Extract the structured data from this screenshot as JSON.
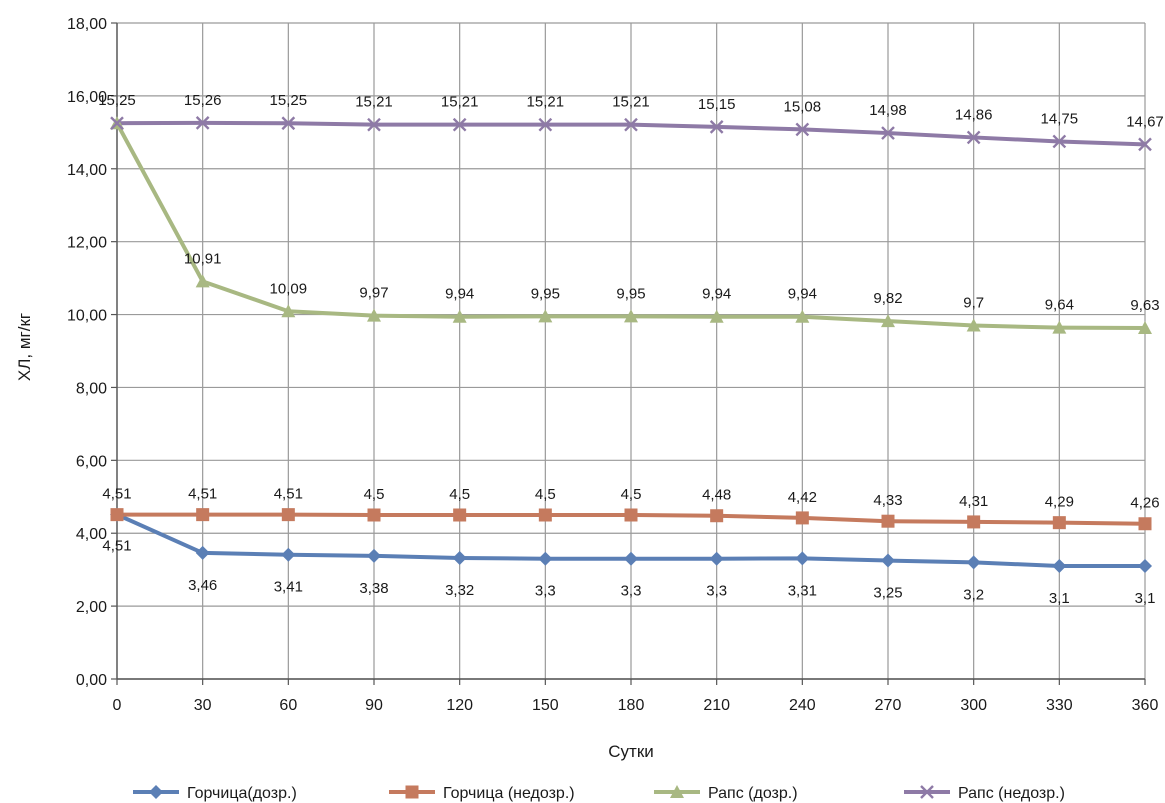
{
  "chart_data": {
    "type": "line",
    "xlabel": "Сутки",
    "ylabel": "ХЛ, мг/кг",
    "x": [
      0,
      30,
      60,
      90,
      120,
      150,
      180,
      210,
      240,
      270,
      300,
      330,
      360
    ],
    "x_tick_labels": [
      "0",
      "30",
      "60",
      "90",
      "120",
      "150",
      "180",
      "210",
      "240",
      "270",
      "300",
      "330",
      "360"
    ],
    "ylim": [
      0,
      18
    ],
    "y_tick_labels": [
      "0,00",
      "2,00",
      "4,00",
      "6,00",
      "8,00",
      "10,00",
      "12,00",
      "14,00",
      "16,00",
      "18,00"
    ],
    "grid": true,
    "legend_position": "bottom",
    "series": [
      {
        "name": "Горчица(дозр.)",
        "color": "#5b7fb5",
        "marker": "diamond",
        "values": [
          4.51,
          3.46,
          3.41,
          3.38,
          3.32,
          3.3,
          3.3,
          3.3,
          3.31,
          3.25,
          3.2,
          3.1,
          3.1
        ],
        "labels": [
          "4,51",
          "3,46",
          "3,41",
          "3,38",
          "3,32",
          "3,3",
          "3,3",
          "3,3",
          "3,31",
          "3,25",
          "3,2",
          "3,1",
          "3,1"
        ]
      },
      {
        "name": "Горчица (недозр.)",
        "color": "#c57a5e",
        "marker": "square",
        "values": [
          4.51,
          4.51,
          4.51,
          4.5,
          4.5,
          4.5,
          4.5,
          4.48,
          4.42,
          4.33,
          4.31,
          4.29,
          4.26
        ],
        "labels": [
          "4,51",
          "4,51",
          "4,51",
          "4,5",
          "4,5",
          "4,5",
          "4,5",
          "4,48",
          "4,42",
          "4,33",
          "4,31",
          "4,29",
          "4,26"
        ]
      },
      {
        "name": "Рапс (дозр.)",
        "color": "#a8b882",
        "marker": "triangle",
        "values": [
          15.25,
          10.91,
          10.09,
          9.97,
          9.94,
          9.95,
          9.95,
          9.94,
          9.94,
          9.82,
          9.7,
          9.64,
          9.63
        ],
        "labels": [
          "",
          "10,91",
          "10,09",
          "9,97",
          "9,94",
          "9,95",
          "9,95",
          "9,94",
          "9,94",
          "9,82",
          "9,7",
          "9,64",
          "9,63"
        ]
      },
      {
        "name": "Рапс (недозр.)",
        "color": "#8e7aa6",
        "marker": "x",
        "values": [
          15.25,
          15.26,
          15.25,
          15.21,
          15.21,
          15.21,
          15.21,
          15.15,
          15.08,
          14.98,
          14.86,
          14.75,
          14.67
        ],
        "labels": [
          "15,25",
          "15,26",
          "15,25",
          "15,21",
          "15,21",
          "15,21",
          "15,21",
          "15,15",
          "15,08",
          "14,98",
          "14,86",
          "14,75",
          "14,67"
        ]
      }
    ]
  }
}
